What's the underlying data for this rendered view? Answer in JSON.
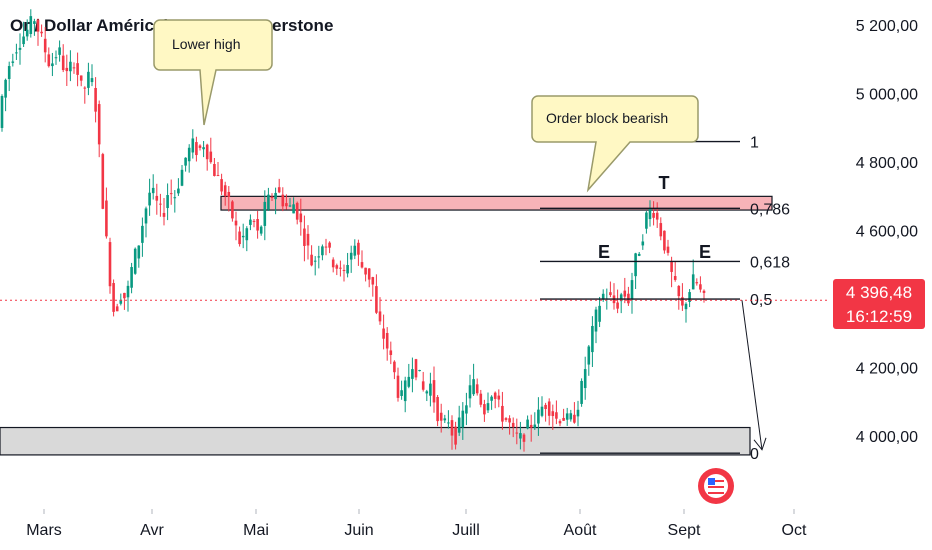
{
  "title": "Or / Dollar Américain · 1D · Pepperstone",
  "price_badge": {
    "price": "4 396,48",
    "countdown": "16:12:59",
    "color": "#f23645"
  },
  "colors": {
    "up": "#089981",
    "down": "#f23645",
    "zone_bearish": "#f7b3b8",
    "zone_support": "#d9d9d9",
    "callout": "#fff8c4",
    "callout_border": "#9a9a6a"
  },
  "chart_data": {
    "type": "candlestick",
    "y_ticks": [
      {
        "value": 5200,
        "label": "5 200,00"
      },
      {
        "value": 5000,
        "label": "5 000,00"
      },
      {
        "value": 4800,
        "label": "4 800,00"
      },
      {
        "value": 4600,
        "label": "4 600,00"
      },
      {
        "value": 4200,
        "label": "4 200,00"
      },
      {
        "value": 4000,
        "label": "4 000,00"
      }
    ],
    "ylim": [
      3790,
      5250
    ],
    "x_ticks": [
      "Mars",
      "Avr",
      "Mai",
      "Juin",
      "Juill",
      "Août",
      "Sept",
      "Oct"
    ],
    "current_price": 4396.48,
    "fib_levels": [
      {
        "value": 4860,
        "label": "1"
      },
      {
        "value": 4665,
        "label": "0,786"
      },
      {
        "value": 4510,
        "label": "0,618"
      },
      {
        "value": 4400,
        "label": "0,5"
      },
      {
        "value": 3950,
        "label": "0"
      }
    ],
    "zones": [
      {
        "name": "bearish-order-block",
        "top": 4700,
        "bottom": 4660
      },
      {
        "name": "support-zone",
        "top": 4025,
        "bottom": 3945
      }
    ],
    "annotations": [
      {
        "text": "Lower high",
        "type": "callout"
      },
      {
        "text": "Order block bearish",
        "type": "callout"
      },
      {
        "text": "E",
        "type": "label"
      },
      {
        "text": "T",
        "type": "label"
      },
      {
        "text": "E",
        "type": "label"
      }
    ],
    "path_points": [
      [
        0,
        4850
      ],
      [
        6,
        5000
      ],
      [
        14,
        5100
      ],
      [
        22,
        5150
      ],
      [
        30,
        5180
      ],
      [
        38,
        5220
      ],
      [
        46,
        5150
      ],
      [
        54,
        5080
      ],
      [
        62,
        5130
      ],
      [
        70,
        5050
      ],
      [
        78,
        5100
      ],
      [
        86,
        5000
      ],
      [
        94,
        5060
      ],
      [
        100,
        4950
      ],
      [
        106,
        4700
      ],
      [
        112,
        4500
      ],
      [
        118,
        4350
      ],
      [
        124,
        4420
      ],
      [
        130,
        4400
      ],
      [
        136,
        4500
      ],
      [
        142,
        4560
      ],
      [
        148,
        4650
      ],
      [
        154,
        4720
      ],
      [
        160,
        4680
      ],
      [
        166,
        4640
      ],
      [
        172,
        4720
      ],
      [
        178,
        4700
      ],
      [
        184,
        4760
      ],
      [
        190,
        4820
      ],
      [
        196,
        4850
      ],
      [
        202,
        4830
      ],
      [
        208,
        4860
      ],
      [
        214,
        4800
      ],
      [
        220,
        4760
      ],
      [
        226,
        4720
      ],
      [
        232,
        4680
      ],
      [
        238,
        4620
      ],
      [
        244,
        4560
      ],
      [
        250,
        4600
      ],
      [
        256,
        4640
      ],
      [
        262,
        4580
      ],
      [
        268,
        4660
      ],
      [
        274,
        4700
      ],
      [
        280,
        4720
      ],
      [
        286,
        4690
      ],
      [
        292,
        4660
      ],
      [
        298,
        4680
      ],
      [
        304,
        4620
      ],
      [
        310,
        4560
      ],
      [
        316,
        4500
      ],
      [
        322,
        4540
      ],
      [
        328,
        4580
      ],
      [
        334,
        4520
      ],
      [
        340,
        4500
      ],
      [
        346,
        4460
      ],
      [
        352,
        4520
      ],
      [
        358,
        4560
      ],
      [
        364,
        4500
      ],
      [
        370,
        4480
      ],
      [
        376,
        4450
      ],
      [
        380,
        4350
      ],
      [
        386,
        4300
      ],
      [
        392,
        4250
      ],
      [
        398,
        4180
      ],
      [
        404,
        4100
      ],
      [
        410,
        4150
      ],
      [
        416,
        4220
      ],
      [
        422,
        4180
      ],
      [
        428,
        4120
      ],
      [
        434,
        4150
      ],
      [
        440,
        4080
      ],
      [
        446,
        4020
      ],
      [
        452,
        4050
      ],
      [
        458,
        3990
      ],
      [
        464,
        4040
      ],
      [
        470,
        4100
      ],
      [
        476,
        4160
      ],
      [
        482,
        4120
      ],
      [
        488,
        4080
      ],
      [
        494,
        4140
      ],
      [
        500,
        4100
      ],
      [
        506,
        4060
      ],
      [
        512,
        4040
      ],
      [
        518,
        4000
      ],
      [
        524,
        3990
      ],
      [
        530,
        4020
      ],
      [
        536,
        4040
      ],
      [
        542,
        4060
      ],
      [
        548,
        4100
      ],
      [
        554,
        4080
      ],
      [
        560,
        4050
      ],
      [
        566,
        4060
      ],
      [
        572,
        4040
      ],
      [
        578,
        4060
      ],
      [
        584,
        4120
      ],
      [
        590,
        4220
      ],
      [
        596,
        4300
      ],
      [
        602,
        4380
      ],
      [
        608,
        4420
      ],
      [
        614,
        4400
      ],
      [
        620,
        4380
      ],
      [
        626,
        4420
      ],
      [
        632,
        4400
      ],
      [
        638,
        4500
      ],
      [
        644,
        4560
      ],
      [
        650,
        4640
      ],
      [
        656,
        4670
      ],
      [
        662,
        4620
      ],
      [
        668,
        4560
      ],
      [
        674,
        4480
      ],
      [
        680,
        4420
      ],
      [
        686,
        4370
      ],
      [
        692,
        4420
      ],
      [
        698,
        4460
      ],
      [
        704,
        4420
      ],
      [
        706,
        4396
      ]
    ],
    "projection": {
      "from_price": 4396.48,
      "to_price": 3960
    }
  }
}
